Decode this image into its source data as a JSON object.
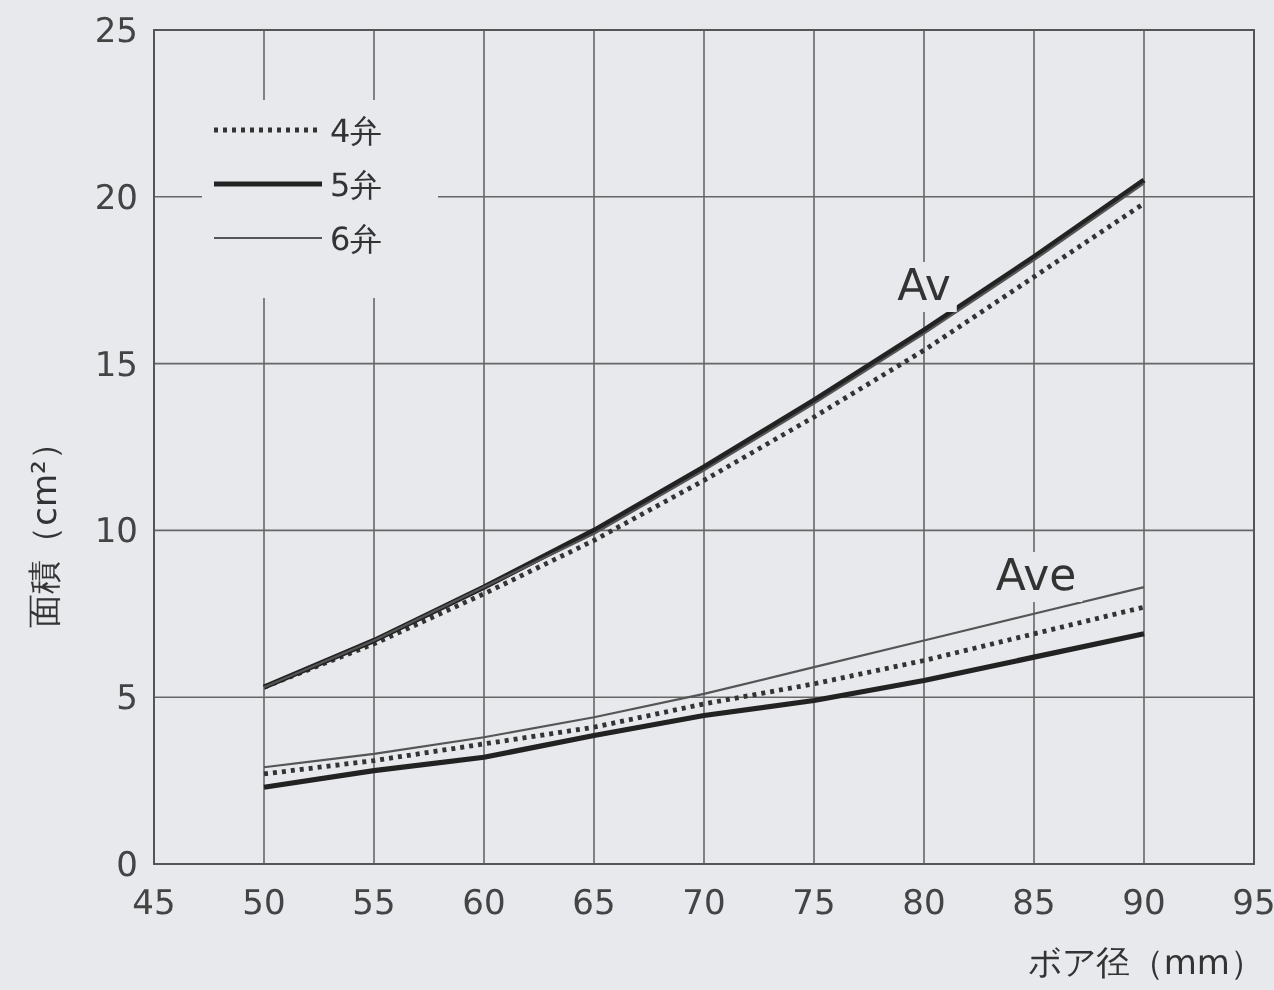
{
  "chart_data": {
    "type": "line",
    "xlabel": "ボア径（mm）",
    "ylabel": "面積（cm²）",
    "x": [
      50,
      55,
      60,
      65,
      70,
      75,
      80,
      85,
      90
    ],
    "xlim": [
      45,
      95
    ],
    "xticks": [
      45,
      50,
      55,
      60,
      65,
      70,
      75,
      80,
      85,
      90,
      95
    ],
    "ylim": [
      0,
      25
    ],
    "yticks": [
      0,
      5,
      10,
      15,
      20,
      25
    ],
    "grid": true,
    "legend": "top left",
    "series": [
      {
        "name": "4弁",
        "color": "#333333",
        "line_style": "dotted",
        "values": [
          5.3,
          6.6,
          8.1,
          9.7,
          11.5,
          13.4,
          15.4,
          17.6,
          19.8
        ]
      },
      {
        "name": "5弁",
        "color": "#222222",
        "line_style": "solid",
        "values": [
          5.3,
          6.7,
          8.3,
          10.0,
          11.9,
          13.9,
          16.0,
          18.2,
          20.5
        ]
      },
      {
        "name": "6弁",
        "color": "#555555",
        "line_style": "solid",
        "values": [
          5.3,
          6.7,
          8.3,
          9.9,
          11.8,
          13.8,
          15.9,
          18.1,
          20.4
        ]
      },
      {
        "color": "#333333",
        "line_style": "dotted",
        "values": [
          2.7,
          3.1,
          3.6,
          4.1,
          4.8,
          5.4,
          6.1,
          6.9,
          7.7
        ]
      },
      {
        "color": "#222222",
        "line_style": "solid",
        "values": [
          2.3,
          2.8,
          3.2,
          3.85,
          4.45,
          4.9,
          5.5,
          6.2,
          6.9
        ]
      },
      {
        "color": "#555555",
        "line_style": "solid",
        "values": [
          2.9,
          3.3,
          3.8,
          4.4,
          5.1,
          5.9,
          6.7,
          7.5,
          8.3
        ]
      }
    ],
    "annotations": [
      "Av",
      "Ave"
    ]
  }
}
